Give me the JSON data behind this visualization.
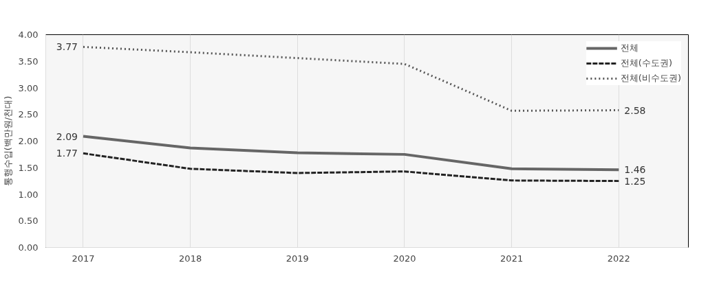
{
  "chart_data": {
    "type": "line",
    "ylabel": "통행수입(백만원/천대)",
    "categories": [
      "2017",
      "2018",
      "2019",
      "2020",
      "2021",
      "2022"
    ],
    "ylim": [
      0,
      4
    ],
    "yticks": [
      {
        "value": 0,
        "label": "0.00"
      },
      {
        "value": 0.5,
        "label": "0.50"
      },
      {
        "value": 1,
        "label": "1.00"
      },
      {
        "value": 1.5,
        "label": "1.50"
      },
      {
        "value": 2,
        "label": "2.00"
      },
      {
        "value": 2.5,
        "label": "2.50"
      },
      {
        "value": 3,
        "label": "3.00"
      },
      {
        "value": 3.5,
        "label": "3.50"
      },
      {
        "value": 4,
        "label": "4.00"
      }
    ],
    "grid": "x",
    "legend": "top right",
    "marker": "none",
    "series": [
      {
        "name": "전체",
        "color": "#666666",
        "line_style": "solid",
        "values": [
          2.09,
          1.87,
          1.78,
          1.75,
          1.48,
          1.46
        ],
        "value_labels": [
          "2.09",
          null,
          null,
          null,
          null,
          "1.46"
        ]
      },
      {
        "name": "전체(수도권)",
        "color": "#222222",
        "line_style": "dashed",
        "values": [
          1.77,
          1.48,
          1.4,
          1.43,
          1.26,
          1.25
        ],
        "value_labels": [
          "1.77",
          null,
          null,
          null,
          null,
          "1.25"
        ]
      },
      {
        "name": "전체(비수도권)",
        "color": "#555555",
        "line_style": "dotted",
        "values": [
          3.77,
          3.67,
          3.56,
          3.45,
          2.57,
          2.58
        ],
        "value_labels": [
          "3.77",
          null,
          null,
          null,
          null,
          "2.58"
        ]
      }
    ]
  }
}
